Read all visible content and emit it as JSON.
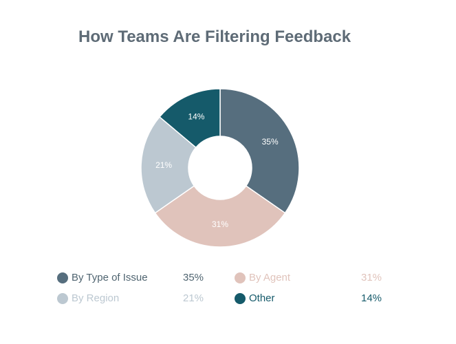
{
  "chart_data": {
    "type": "pie",
    "variant": "donut",
    "title": "How Teams Are Filtering Feedback",
    "categories": [
      "By Type of Issue",
      "By Agent",
      "By Region",
      "Other"
    ],
    "values": [
      35,
      31,
      21,
      14
    ],
    "value_labels": [
      "35%",
      "31%",
      "21%",
      "14%"
    ],
    "colors": [
      "#566e7e",
      "#e0c3bb",
      "#bcc8d1",
      "#155a6a"
    ],
    "label_text_colors": [
      "#ffffff",
      "#ffffff",
      "#ffffff",
      "#ffffff"
    ],
    "legend_text_colors": [
      "#4f6470",
      "#e0c3bb",
      "#bcc8d1",
      "#155a6a"
    ],
    "legend_position": "bottom",
    "start_angle": "top, clockwise"
  },
  "legend": {
    "items": [
      {
        "label": "By Type of Issue",
        "value": "35%"
      },
      {
        "label": "By Agent",
        "value": "31%"
      },
      {
        "label": "By Region",
        "value": "21%"
      },
      {
        "label": "Other",
        "value": "14%"
      }
    ]
  }
}
